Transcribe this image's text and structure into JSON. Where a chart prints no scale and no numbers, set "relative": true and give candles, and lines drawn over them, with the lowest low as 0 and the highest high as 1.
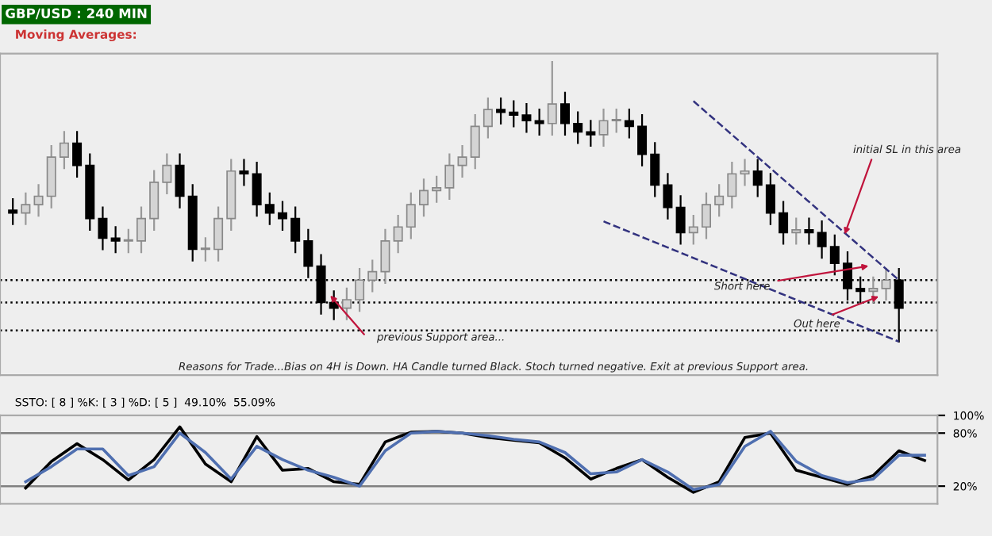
{
  "chart_data": [
    {
      "type": "candlestick",
      "title": "GBP/USD : 240 MIN",
      "subtitle": "Moving Averages:",
      "relative": true,
      "tick_labels": false,
      "grid": false,
      "legend": false,
      "categories": [
        null,
        null,
        null,
        null,
        null,
        null,
        null,
        null,
        null,
        null,
        null,
        null,
        null,
        null,
        null,
        null,
        null,
        null,
        null,
        null,
        null,
        null,
        null,
        null,
        null,
        null,
        null,
        null,
        null,
        null,
        null,
        null,
        null,
        null,
        null,
        null,
        null,
        null,
        null,
        null,
        null,
        null,
        null,
        null,
        null,
        null,
        null,
        null,
        null,
        null,
        null,
        null,
        null,
        null,
        null,
        null,
        null,
        null,
        null,
        null,
        null,
        null,
        null,
        null,
        null,
        null,
        null,
        null,
        null,
        null
      ],
      "ohlc": [
        [
          0.47,
          0.51,
          0.42,
          0.46
        ],
        [
          0.46,
          0.53,
          0.42,
          0.49
        ],
        [
          0.49,
          0.56,
          0.45,
          0.52
        ],
        [
          0.52,
          0.7,
          0.48,
          0.66
        ],
        [
          0.66,
          0.75,
          0.62,
          0.71
        ],
        [
          0.71,
          0.75,
          0.59,
          0.63
        ],
        [
          0.63,
          0.67,
          0.4,
          0.44
        ],
        [
          0.44,
          0.48,
          0.33,
          0.37
        ],
        [
          0.37,
          0.41,
          0.32,
          0.36
        ],
        [
          0.36,
          0.4,
          0.32,
          0.36
        ],
        [
          0.36,
          0.48,
          0.32,
          0.44
        ],
        [
          0.44,
          0.61,
          0.4,
          0.57
        ],
        [
          0.57,
          0.67,
          0.53,
          0.63
        ],
        [
          0.63,
          0.67,
          0.48,
          0.52
        ],
        [
          0.52,
          0.56,
          0.29,
          0.33
        ],
        [
          0.33,
          0.37,
          0.29,
          0.33
        ],
        [
          0.33,
          0.48,
          0.29,
          0.44
        ],
        [
          0.44,
          0.65,
          0.4,
          0.61
        ],
        [
          0.61,
          0.65,
          0.56,
          0.6
        ],
        [
          0.6,
          0.64,
          0.45,
          0.49
        ],
        [
          0.49,
          0.53,
          0.42,
          0.46
        ],
        [
          0.46,
          0.5,
          0.4,
          0.44
        ],
        [
          0.44,
          0.48,
          0.32,
          0.36
        ],
        [
          0.36,
          0.4,
          0.23,
          0.27
        ],
        [
          0.27,
          0.31,
          0.1,
          0.14
        ],
        [
          0.14,
          0.18,
          0.08,
          0.12
        ],
        [
          0.12,
          0.19,
          0.08,
          0.15
        ],
        [
          0.15,
          0.26,
          0.11,
          0.22
        ],
        [
          0.22,
          0.29,
          0.18,
          0.25
        ],
        [
          0.25,
          0.4,
          0.21,
          0.36
        ],
        [
          0.36,
          0.45,
          0.32,
          0.41
        ],
        [
          0.41,
          0.53,
          0.37,
          0.49
        ],
        [
          0.49,
          0.58,
          0.45,
          0.54
        ],
        [
          0.54,
          0.59,
          0.5,
          0.55
        ],
        [
          0.55,
          0.67,
          0.51,
          0.63
        ],
        [
          0.63,
          0.7,
          0.59,
          0.66
        ],
        [
          0.66,
          0.81,
          0.62,
          0.77
        ],
        [
          0.77,
          0.87,
          0.73,
          0.83
        ],
        [
          0.83,
          0.87,
          0.78,
          0.82
        ],
        [
          0.82,
          0.86,
          0.77,
          0.81
        ],
        [
          0.81,
          0.85,
          0.75,
          0.79
        ],
        [
          0.79,
          0.83,
          0.74,
          0.78
        ],
        [
          0.78,
          1.0,
          0.74,
          0.85
        ],
        [
          0.85,
          0.89,
          0.74,
          0.78
        ],
        [
          0.78,
          0.82,
          0.71,
          0.75
        ],
        [
          0.75,
          0.79,
          0.7,
          0.74
        ],
        [
          0.74,
          0.83,
          0.7,
          0.79
        ],
        [
          0.79,
          0.83,
          0.75,
          0.79
        ],
        [
          0.79,
          0.83,
          0.73,
          0.77
        ],
        [
          0.77,
          0.81,
          0.63,
          0.67
        ],
        [
          0.67,
          0.71,
          0.52,
          0.56
        ],
        [
          0.56,
          0.6,
          0.44,
          0.48
        ],
        [
          0.48,
          0.52,
          0.35,
          0.39
        ],
        [
          0.39,
          0.45,
          0.35,
          0.41
        ],
        [
          0.41,
          0.53,
          0.37,
          0.49
        ],
        [
          0.49,
          0.56,
          0.45,
          0.52
        ],
        [
          0.52,
          0.64,
          0.48,
          0.6
        ],
        [
          0.6,
          0.65,
          0.56,
          0.61
        ],
        [
          0.61,
          0.65,
          0.52,
          0.56
        ],
        [
          0.56,
          0.6,
          0.42,
          0.46
        ],
        [
          0.46,
          0.5,
          0.35,
          0.39
        ],
        [
          0.39,
          0.44,
          0.35,
          0.4
        ],
        [
          0.4,
          0.44,
          0.35,
          0.39
        ],
        [
          0.39,
          0.43,
          0.3,
          0.34
        ],
        [
          0.34,
          0.38,
          0.24,
          0.28
        ],
        [
          0.28,
          0.32,
          0.15,
          0.19
        ],
        [
          0.19,
          0.23,
          0.14,
          0.18
        ],
        [
          0.18,
          0.23,
          0.14,
          0.19
        ],
        [
          0.19,
          0.26,
          0.15,
          0.22
        ],
        [
          0.22,
          0.26,
          0.0,
          0.12
        ]
      ],
      "series": [
        {
          "type": "line",
          "color": "#33337f",
          "line_style": "dashed",
          "values": [
            null,
            null,
            null,
            null,
            null,
            null,
            null,
            null,
            null,
            null,
            null,
            null,
            null,
            null,
            null,
            null,
            null,
            null,
            null,
            null,
            null,
            null,
            null,
            null,
            null,
            null,
            null,
            null,
            null,
            null,
            null,
            null,
            null,
            null,
            null,
            null,
            null,
            null,
            null,
            null,
            null,
            null,
            null,
            null,
            null,
            null,
            null,
            null,
            null,
            null,
            null,
            null,
            null,
            0.86,
            null,
            null,
            null,
            null,
            null,
            null,
            null,
            null,
            null,
            null,
            null,
            null,
            null,
            null,
            null,
            0.22
          ]
        },
        {
          "type": "line",
          "color": "#33337f",
          "line_style": "dashed",
          "values": [
            null,
            null,
            null,
            null,
            null,
            null,
            null,
            null,
            null,
            null,
            null,
            null,
            null,
            null,
            null,
            null,
            null,
            null,
            null,
            null,
            null,
            null,
            null,
            null,
            null,
            null,
            null,
            null,
            null,
            null,
            null,
            null,
            null,
            null,
            null,
            null,
            null,
            null,
            null,
            null,
            null,
            null,
            null,
            null,
            null,
            null,
            0.43,
            null,
            null,
            null,
            null,
            null,
            null,
            null,
            null,
            null,
            null,
            null,
            null,
            null,
            null,
            null,
            null,
            null,
            null,
            null,
            null,
            null,
            null,
            0.0
          ]
        }
      ],
      "ref_lines": [
        {
          "axis": "y",
          "value": 0.22,
          "color": "#000000",
          "line_style": "dotted"
        },
        {
          "axis": "y",
          "value": 0.14,
          "color": "#000000",
          "line_style": "dotted"
        },
        {
          "axis": "y",
          "value": 0.04,
          "color": "#000000",
          "line_style": "dotted"
        }
      ],
      "annotations": [
        "previous Support area...",
        "Reasons for Trade...Bias on 4H is Down. HA Candle turned Black. Stoch turned negative. Exit at previous Support area.",
        "Short here",
        "Out here",
        "initial SL in this area"
      ]
    },
    {
      "type": "line",
      "title": "SSTO: [ 8 ] %K: [ 3 ] %D: [ 5 ]  49.10%  55.09%",
      "tick_labels": "y",
      "grid": false,
      "legend": false,
      "categories": [
        null,
        null,
        null,
        null,
        null,
        null,
        null,
        null,
        null,
        null,
        null,
        null,
        null,
        null,
        null,
        null,
        null,
        null,
        null,
        null,
        null,
        null,
        null,
        null,
        null,
        null,
        null,
        null,
        null,
        null,
        null,
        null,
        null,
        null,
        null,
        null
      ],
      "ylim": [
        0,
        100
      ],
      "yticks": [
        {
          "value": 100,
          "label": "100%"
        },
        {
          "value": 80,
          "label": "80%"
        },
        {
          "value": 20,
          "label": "20%"
        }
      ],
      "ref_lines": [
        {
          "axis": "y",
          "value": 80,
          "color": "#808080",
          "line_style": "solid"
        },
        {
          "axis": "y",
          "value": 20,
          "color": "#808080",
          "line_style": "solid"
        }
      ],
      "series": [
        {
          "color": "#000000",
          "values": [
            18,
            48,
            68,
            50,
            27,
            50,
            87,
            45,
            25,
            76,
            38,
            40,
            25,
            22,
            70,
            81,
            82,
            80,
            75,
            72,
            69,
            52,
            28,
            40,
            50,
            30,
            13,
            25,
            75,
            80,
            38,
            30,
            22,
            32,
            60,
            49
          ]
        },
        {
          "color": "#4f6fb0",
          "values": [
            25,
            42,
            62,
            62,
            32,
            42,
            80,
            58,
            28,
            65,
            50,
            38,
            30,
            20,
            60,
            80,
            82,
            80,
            77,
            73,
            70,
            58,
            34,
            36,
            50,
            36,
            16,
            22,
            65,
            82,
            48,
            32,
            24,
            28,
            55,
            55
          ]
        }
      ]
    }
  ]
}
